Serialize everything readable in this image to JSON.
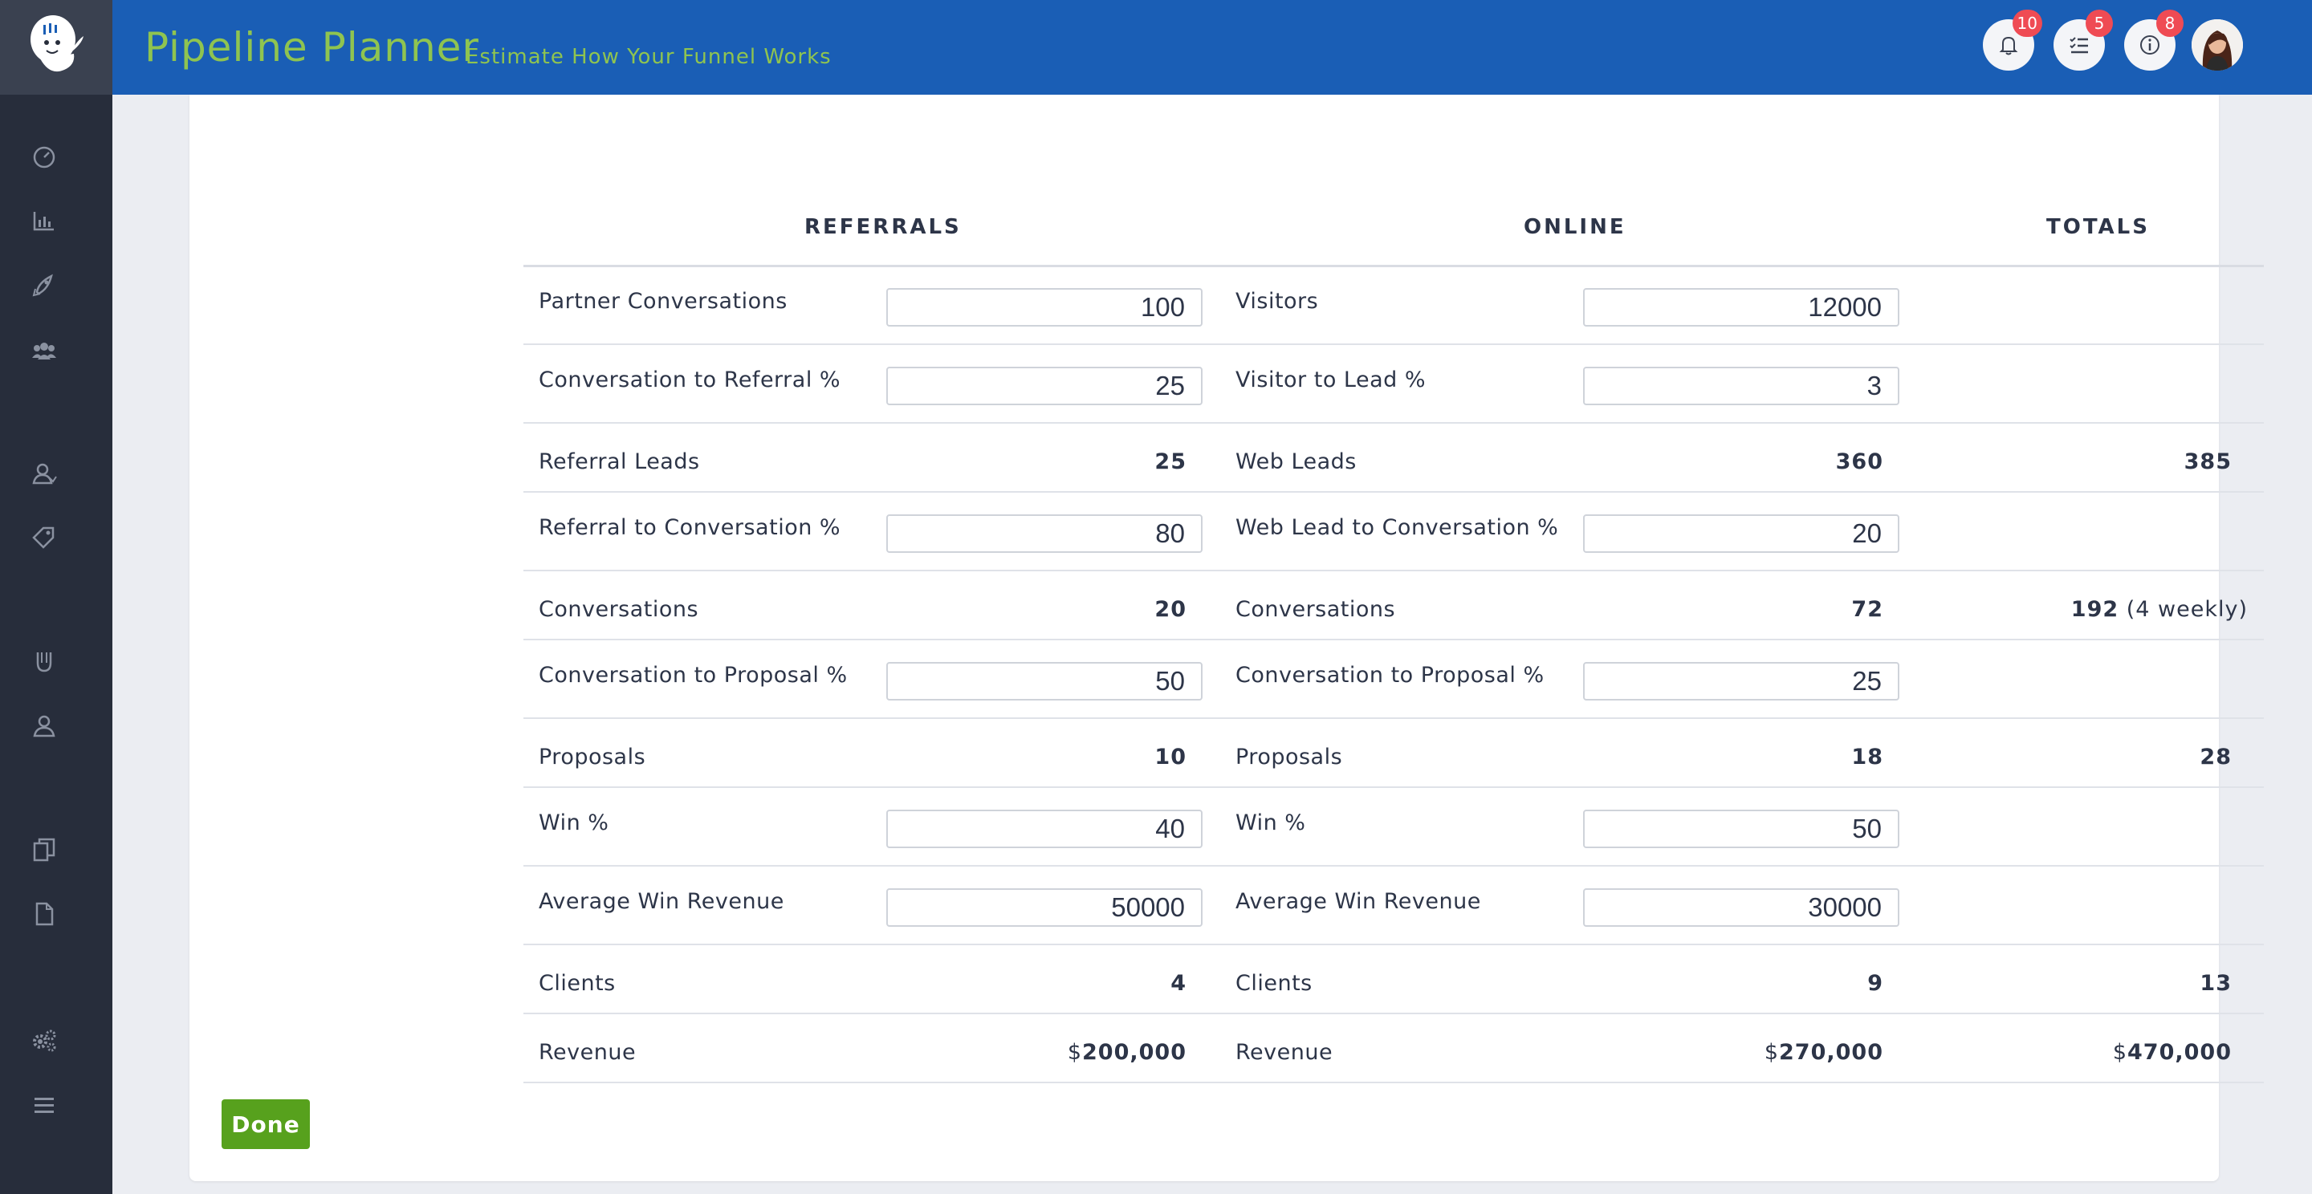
{
  "header": {
    "title": "Pipeline Planner",
    "subtitle": "Estimate How Your Funnel Works",
    "notifications_count": "10",
    "tasks_count": "5",
    "info_count": "8"
  },
  "sidebar": {
    "items": [
      {
        "icon": "dashboard-icon"
      },
      {
        "icon": "bar-chart-icon"
      },
      {
        "icon": "rocket-icon"
      },
      {
        "icon": "users-icon"
      },
      {
        "icon": "contact-icon"
      },
      {
        "icon": "tag-icon"
      },
      {
        "icon": "magnet-icon"
      },
      {
        "icon": "user-icon"
      },
      {
        "icon": "documents-icon"
      },
      {
        "icon": "document-icon"
      },
      {
        "icon": "settings-icon"
      },
      {
        "icon": "menu-icon"
      }
    ]
  },
  "table": {
    "headers": {
      "referrals": "REFERRALS",
      "online": "ONLINE",
      "totals": "TOTALS"
    },
    "rows": [
      {
        "ref_label": "Partner Conversations",
        "ref_value": "100",
        "ref_input": true,
        "on_label": "Visitors",
        "on_value": "12000",
        "on_input": true,
        "total": ""
      },
      {
        "ref_label": "Conversation to Referral %",
        "ref_value": "25",
        "ref_input": true,
        "on_label": "Visitor to Lead %",
        "on_value": "3",
        "on_input": true,
        "total": ""
      },
      {
        "ref_label": "Referral Leads",
        "ref_value": "25",
        "ref_input": false,
        "on_label": "Web Leads",
        "on_value": "360",
        "on_input": false,
        "total": "385"
      },
      {
        "ref_label": "Referral to Conversation %",
        "ref_value": "80",
        "ref_input": true,
        "on_label": "Web Lead to Conversation %",
        "on_value": "20",
        "on_input": true,
        "total": ""
      },
      {
        "ref_label": "Conversations",
        "ref_value": "20",
        "ref_input": false,
        "on_label": "Conversations",
        "on_value": "72",
        "on_input": false,
        "total": "192",
        "total_extra": " (4 weekly)"
      },
      {
        "ref_label": "Conversation to Proposal %",
        "ref_value": "50",
        "ref_input": true,
        "on_label": "Conversation to Proposal %",
        "on_value": "25",
        "on_input": true,
        "total": ""
      },
      {
        "ref_label": "Proposals",
        "ref_value": "10",
        "ref_input": false,
        "on_label": "Proposals",
        "on_value": "18",
        "on_input": false,
        "total": "28"
      },
      {
        "ref_label": "Win %",
        "ref_value": "40",
        "ref_input": true,
        "on_label": "Win %",
        "on_value": "50",
        "on_input": true,
        "total": ""
      },
      {
        "ref_label": "Average Win Revenue",
        "ref_value": "50000",
        "ref_input": true,
        "on_label": "Average Win Revenue",
        "on_value": "30000",
        "on_input": true,
        "total": ""
      },
      {
        "ref_label": "Clients",
        "ref_value": "4",
        "ref_input": false,
        "on_label": "Clients",
        "on_value": "9",
        "on_input": false,
        "total": "13"
      },
      {
        "ref_label": "Revenue",
        "ref_value": "200,000",
        "ref_cur": "$",
        "ref_input": false,
        "on_label": "Revenue",
        "on_value": "270,000",
        "on_cur": "$",
        "on_input": false,
        "total": "470,000",
        "total_cur": "$"
      }
    ]
  },
  "done_label": "Done",
  "colors": {
    "header_bg": "#1a5eb5",
    "title_green": "#8fc450",
    "sidebar_bg": "#272d3b",
    "badge_red": "#ef4b54",
    "done_green": "#57a11d"
  }
}
